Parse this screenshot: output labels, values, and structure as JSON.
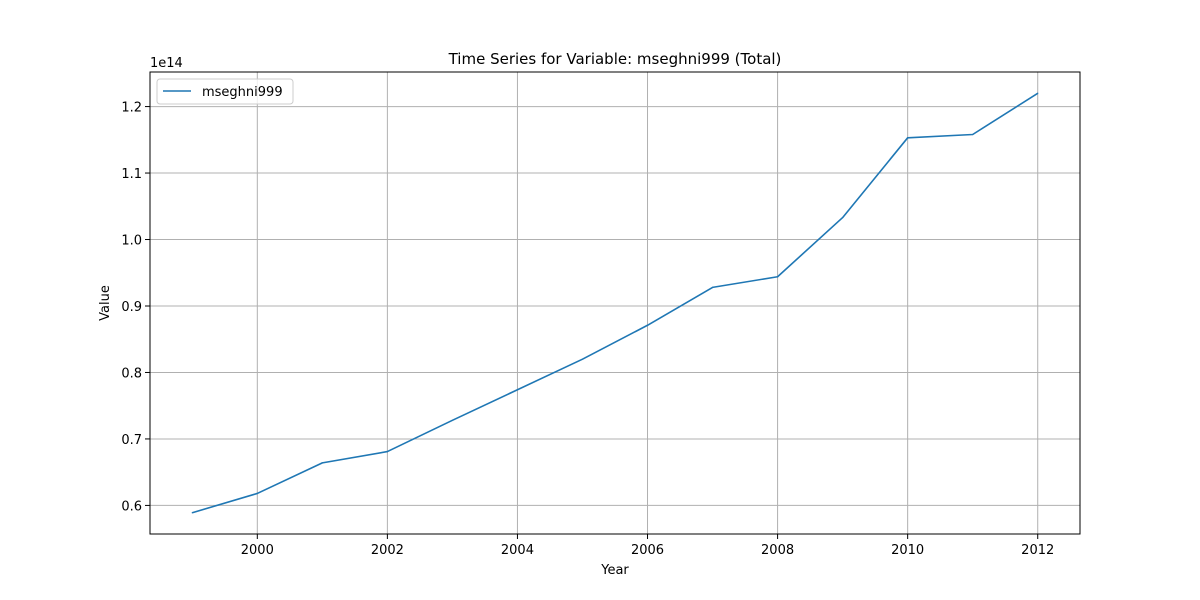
{
  "chart_data": {
    "type": "line",
    "title": "Time Series for Variable: mseghni999 (Total)",
    "xlabel": "Year",
    "ylabel": "Value",
    "y_offset_label": "1e14",
    "y_scale_factor": 100000000000000.0,
    "xlim": [
      1998.35,
      2012.65
    ],
    "ylim": [
      0.557,
      1.252
    ],
    "x_ticks": [
      2000,
      2002,
      2004,
      2006,
      2008,
      2010,
      2012
    ],
    "y_ticks": [
      0.6,
      0.7,
      0.8,
      0.9,
      1.0,
      1.1,
      1.2
    ],
    "y_tick_labels": [
      "0.6",
      "0.7",
      "0.8",
      "0.9",
      "1.0",
      "1.1",
      "1.2"
    ],
    "grid": true,
    "legend_position": "top-left",
    "series": [
      {
        "name": "mseghni999",
        "color": "#1f77b4",
        "x": [
          1999,
          2000,
          2001,
          2002,
          2003,
          2004,
          2005,
          2006,
          2007,
          2008,
          2009,
          2010,
          2011,
          2012
        ],
        "values": [
          0.589,
          0.618,
          0.664,
          0.681,
          0.728,
          0.774,
          0.82,
          0.871,
          0.928,
          0.944,
          1.033,
          1.153,
          1.158,
          1.22
        ]
      }
    ]
  }
}
